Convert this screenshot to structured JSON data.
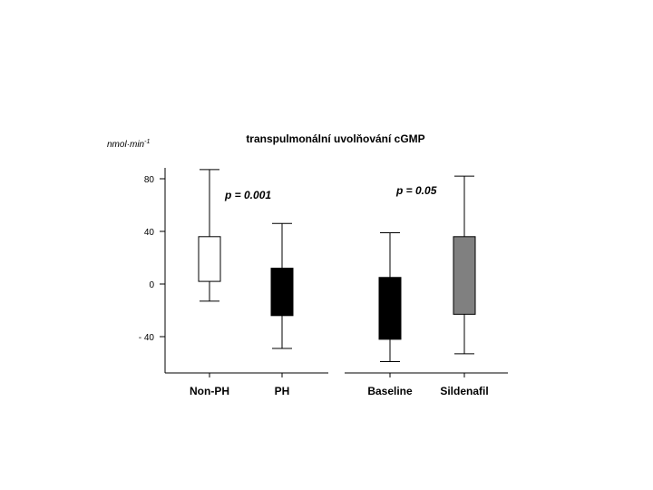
{
  "chart_data": {
    "type": "box",
    "title": "transpulmonální uvolňování cGMP",
    "ylabel": "nmol·min-1",
    "ylim": [
      -68,
      100
    ],
    "yticks": [
      {
        "value": 80,
        "label": "80"
      },
      {
        "value": 40,
        "label": "40"
      },
      {
        "value": 0,
        "label": "0"
      },
      {
        "value": -40,
        "label": "- 40"
      }
    ],
    "grid": false,
    "groups": [
      {
        "annotation": "p = 0.001",
        "boxes": [
          {
            "category": "Non-PH",
            "whisker_high": 87,
            "q3": 36,
            "q1": 2,
            "whisker_low": -13,
            "color": "#ffffff"
          },
          {
            "category": "PH",
            "whisker_high": 46,
            "q3": 12,
            "q1": -24,
            "whisker_low": -49,
            "color": "#000000"
          }
        ]
      },
      {
        "annotation": "p = 0.05",
        "boxes": [
          {
            "category": "Baseline",
            "whisker_high": 39,
            "q3": 5,
            "q1": -42,
            "whisker_low": -59,
            "color": "#000000"
          },
          {
            "category": "Sildenafil",
            "whisker_high": 82,
            "q3": 36,
            "q1": -23,
            "whisker_low": -53,
            "color": "#808080"
          }
        ]
      }
    ]
  }
}
